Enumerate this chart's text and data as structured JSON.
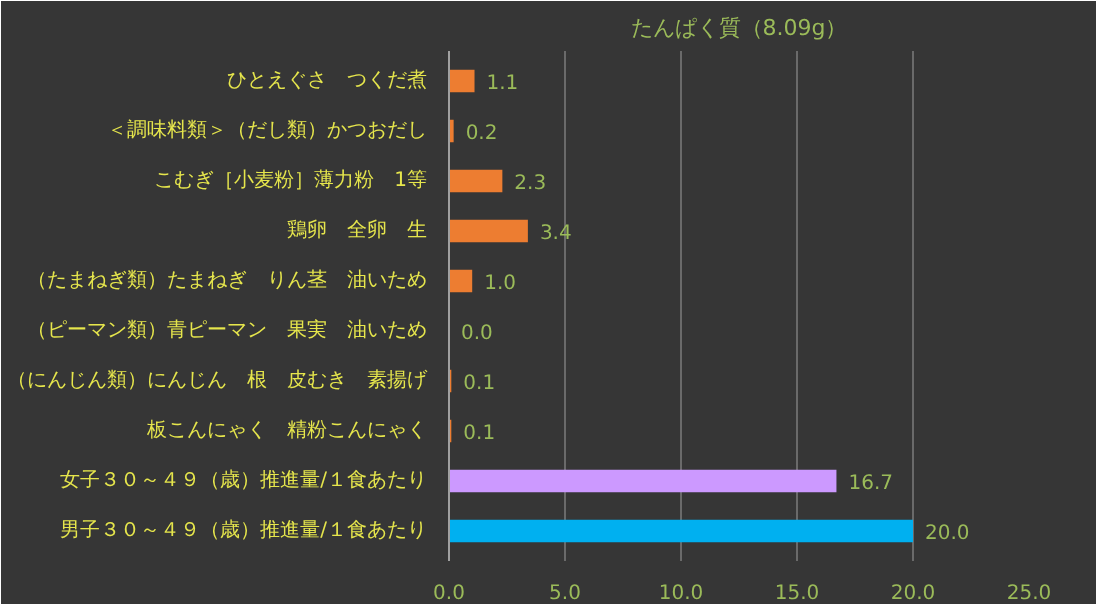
{
  "chart_data": {
    "type": "bar",
    "orientation": "horizontal",
    "title": "たんぱく質（8.09g）",
    "categories": [
      "ひとえぐさ　つくだ煮",
      "＜調味料類＞（だし類）かつおだし",
      "こむぎ［小麦粉］薄力粉　1等",
      "鶏卵　全卵　生",
      "（たまねぎ類）たまねぎ　りん茎　油いため",
      "（ピーマン類）青ピーマン　果実　油いため",
      "（にんじん類）にんじん　根　皮むき　素揚げ",
      "板こんにゃく　精粉こんにゃく",
      "女子３０～４９（歳）推進量/１食あたり",
      "男子３０～４９（歳）推進量/１食あたり"
    ],
    "values": [
      1.1,
      0.2,
      2.3,
      3.4,
      1.0,
      0.0,
      0.1,
      0.1,
      16.7,
      20.0
    ],
    "value_labels": [
      "1.1",
      "0.2",
      "2.3",
      "3.4",
      "1.0",
      "0.0",
      "0.1",
      "0.1",
      "16.7",
      "20.0"
    ],
    "colors": [
      "#ed7d31",
      "#ed7d31",
      "#ed7d31",
      "#ed7d31",
      "#ed7d31",
      "#ed7d31",
      "#ed7d31",
      "#ed7d31",
      "#cc99ff",
      "#00b0f0"
    ],
    "xlim": [
      0,
      25
    ],
    "xticks": [
      {
        "value": 0,
        "label": "0.0"
      },
      {
        "value": 5,
        "label": "5.0"
      },
      {
        "value": 10,
        "label": "10.0"
      },
      {
        "value": 15,
        "label": "15.0"
      },
      {
        "value": 20,
        "label": "20.0"
      },
      {
        "value": 25,
        "label": "25.0"
      }
    ],
    "grid": "x"
  }
}
